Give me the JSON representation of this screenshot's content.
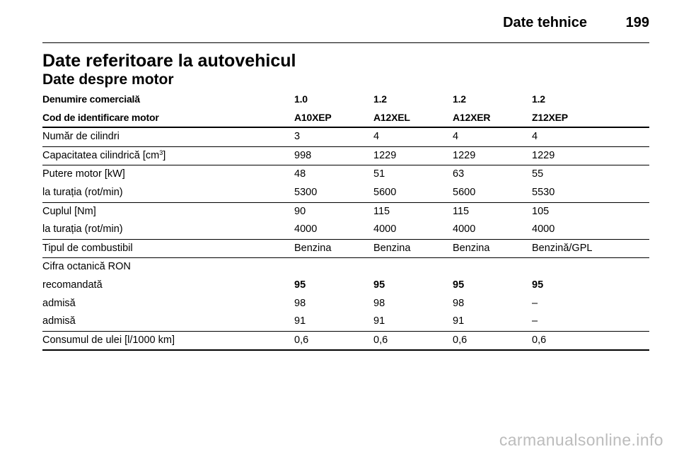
{
  "header": {
    "title": "Date tehnice",
    "page_number": "199"
  },
  "section_title": "Date referitoare la autovehicul",
  "subsection_title": "Date despre motor",
  "table": {
    "header_rows": [
      {
        "label": "Denumire comercială",
        "values": [
          "1.0",
          "1.2",
          "1.2",
          "1.2"
        ]
      },
      {
        "label": "Cod de identificare motor",
        "values": [
          "A10XEP",
          "A12XEL",
          "A12XER",
          "Z12XEP"
        ]
      }
    ],
    "rows": [
      {
        "label": "Număr de cilindri",
        "values": [
          "3",
          "4",
          "4",
          "4"
        ]
      },
      {
        "label_main": "Capacitatea cilindrică [cm",
        "label_sup": "3",
        "label_end": "]",
        "values": [
          "998",
          "1229",
          "1229",
          "1229"
        ]
      },
      {
        "label": "Putere motor [kW]",
        "values": [
          "48",
          "51",
          "63",
          "55"
        ]
      },
      {
        "label": "la turația (rot/min)",
        "values": [
          "5300",
          "5600",
          "5600",
          "5530"
        ]
      },
      {
        "label": "Cuplul [Nm]",
        "values": [
          "90",
          "115",
          "115",
          "105"
        ]
      },
      {
        "label": "la turația (rot/min)",
        "values": [
          "4000",
          "4000",
          "4000",
          "4000"
        ]
      },
      {
        "label": "Tipul de combustibil",
        "values": [
          "Benzina",
          "Benzina",
          "Benzina",
          "Benzină/GPL"
        ]
      },
      {
        "label": "Cifra octanică RON",
        "values": [
          "",
          "",
          "",
          ""
        ]
      },
      {
        "label": "recomandată",
        "values": [
          "95",
          "95",
          "95",
          "95"
        ]
      },
      {
        "label": "admisă",
        "values": [
          "98",
          "98",
          "98",
          "–"
        ]
      },
      {
        "label": "admisă",
        "values": [
          "91",
          "91",
          "91",
          "–"
        ]
      },
      {
        "label": "Consumul de ulei [l/1000 km]",
        "values": [
          "0,6",
          "0,6",
          "0,6",
          "0,6"
        ]
      }
    ]
  },
  "watermark": "carmanualsonline.info"
}
